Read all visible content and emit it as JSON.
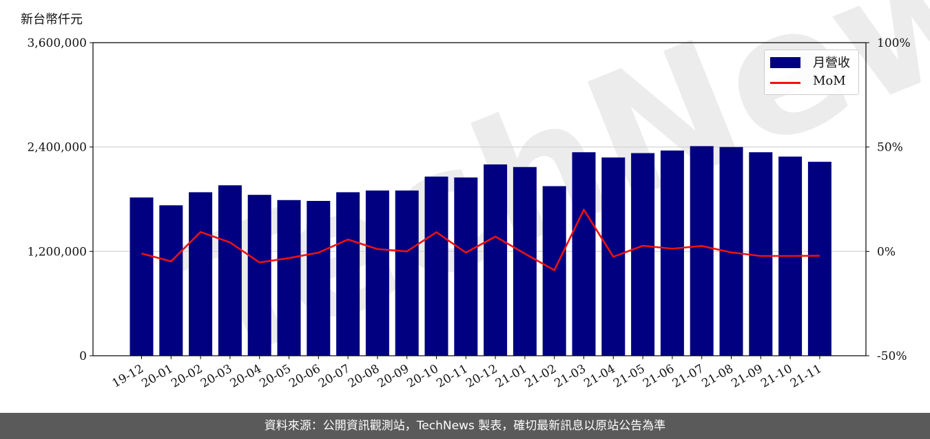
{
  "unit_label": "新台幣仟元",
  "footer_text": "資料來源：公開資訊觀測站，TechNews 製表，確切最新訊息以原站公告為準",
  "watermark": "TechNews",
  "colors": {
    "bar": "#000080",
    "line": "#ee1111",
    "footer_bg": "#5a5a5a"
  },
  "chart_data": {
    "type": "bar",
    "categories": [
      "19-12",
      "20-01",
      "20-02",
      "20-03",
      "20-04",
      "20-05",
      "20-06",
      "20-07",
      "20-08",
      "20-09",
      "20-10",
      "20-11",
      "20-12",
      "21-01",
      "21-02",
      "21-03",
      "21-04",
      "21-05",
      "21-06",
      "21-07",
      "21-08",
      "21-09",
      "21-10",
      "21-11"
    ],
    "series": [
      {
        "name": "月營收",
        "axis": "left",
        "kind": "bar",
        "values": [
          1820000,
          1730000,
          1880000,
          1960000,
          1850000,
          1790000,
          1780000,
          1880000,
          1900000,
          1900000,
          2060000,
          2050000,
          2200000,
          2170000,
          1950000,
          2340000,
          2280000,
          2330000,
          2360000,
          2410000,
          2400000,
          2340000,
          2290000,
          2230000
        ]
      },
      {
        "name": "MoM",
        "axis": "right",
        "kind": "line",
        "values": [
          -1.0,
          -4.8,
          9.3,
          4.3,
          -5.3,
          -3.2,
          -0.6,
          5.7,
          1.1,
          0.0,
          9.2,
          -0.6,
          7.1,
          -1.1,
          -9.0,
          20.0,
          -2.6,
          2.7,
          1.3,
          2.6,
          -0.5,
          -2.2,
          -2.2,
          -2.1
        ]
      }
    ],
    "y_left": {
      "ylim": [
        0,
        3600000
      ],
      "ticks": [
        0,
        1200000,
        2400000,
        3600000
      ],
      "tick_labels": [
        "0",
        "1,200,000",
        "2,400,000",
        "3,600,000"
      ]
    },
    "y_right": {
      "ylim": [
        -50,
        100
      ],
      "ticks": [
        -50,
        0,
        50,
        100
      ],
      "tick_labels": [
        "-50%",
        "0%",
        "50%",
        "100%"
      ]
    },
    "grid": "horizontal",
    "legend": "top-right"
  }
}
